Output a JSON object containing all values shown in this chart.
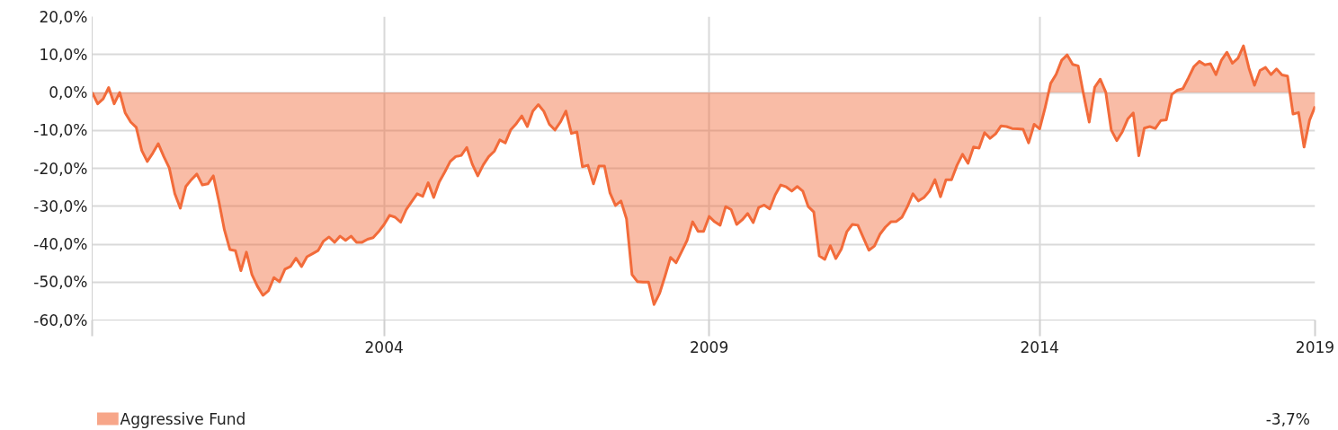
{
  "chart_data": {
    "type": "area",
    "categories": [
      null,
      null,
      null,
      null,
      null,
      null,
      null,
      null,
      null,
      null,
      null,
      null,
      null,
      null,
      null,
      null,
      null,
      null,
      null,
      null,
      null,
      null,
      null,
      null,
      null,
      null,
      null,
      null,
      null,
      null,
      null,
      null,
      null,
      null,
      null,
      null,
      null,
      null,
      null,
      null,
      null,
      null,
      null,
      null,
      null,
      null,
      null,
      null,
      null,
      null,
      null,
      null,
      null,
      "2004",
      null,
      null,
      null,
      null,
      null,
      null,
      null,
      null,
      null,
      null,
      null,
      null,
      null,
      null,
      null,
      null,
      null,
      null,
      null,
      null,
      null,
      null,
      null,
      null,
      null,
      null,
      null,
      null,
      null,
      null,
      null,
      null,
      null,
      null,
      null,
      null,
      null,
      null,
      null,
      null,
      null,
      null,
      null,
      null,
      null,
      null,
      null,
      null,
      null,
      null,
      null,
      null,
      null,
      null,
      null,
      null,
      null,
      null,
      "2009",
      null,
      null,
      null,
      null,
      null,
      null,
      null,
      null,
      null,
      null,
      null,
      null,
      null,
      null,
      null,
      null,
      null,
      null,
      null,
      null,
      null,
      null,
      null,
      null,
      null,
      null,
      null,
      null,
      null,
      null,
      null,
      null,
      null,
      null,
      null,
      null,
      null,
      null,
      null,
      null,
      null,
      null,
      null,
      null,
      null,
      null,
      null,
      null,
      null,
      null,
      null,
      null,
      null,
      null,
      null,
      null,
      null,
      null,
      null,
      "2014",
      null,
      null,
      null,
      null,
      null,
      null,
      null,
      null,
      null,
      null,
      null,
      null,
      null,
      null,
      null,
      null,
      null,
      null,
      null,
      null,
      null,
      null,
      null,
      null,
      null,
      null,
      null,
      null,
      null,
      null,
      null,
      null,
      null,
      null,
      null,
      null,
      null,
      null,
      null,
      null,
      null,
      null,
      null,
      null,
      null,
      null,
      null,
      null,
      null,
      "2019"
    ],
    "series": [
      {
        "name": "Aggressive Fund",
        "color": "#f26b3a",
        "values": [
          0,
          -3,
          -1.7,
          1.3,
          -3,
          0,
          -5.4,
          -7.8,
          -9.2,
          -15.3,
          -18.2,
          -16,
          -13.5,
          -16.9,
          -19.9,
          -26.7,
          -30.5,
          -24.8,
          -23,
          -21.5,
          -24.4,
          -24.1,
          -22,
          -28.7,
          -36.2,
          -41.4,
          -41.7,
          -47,
          -42.1,
          -48,
          -51.1,
          -53.5,
          -52.3,
          -48.8,
          -49.9,
          -46.6,
          -45.9,
          -43.7,
          -45.9,
          -43.3,
          -42.5,
          -41.7,
          -39.2,
          -38.1,
          -39.5,
          -37.9,
          -39,
          -37.9,
          -39.5,
          -39.5,
          -38.7,
          -38.3,
          -36.7,
          -34.8,
          -32.4,
          -32.9,
          -34.2,
          -30.9,
          -28.8,
          -26.7,
          -27.4,
          -23.8,
          -27.7,
          -23.6,
          -21,
          -18.2,
          -16.9,
          -16.6,
          -14.5,
          -18.9,
          -22,
          -19.1,
          -16.9,
          -15.5,
          -12.5,
          -13.3,
          -9.8,
          -8.2,
          -6.2,
          -9,
          -4.9,
          -3.2,
          -5,
          -8.4,
          -9.9,
          -7.8,
          -4.9,
          -10.8,
          -10.4,
          -19.6,
          -19.2,
          -24.1,
          -19.4,
          -19.4,
          -26.5,
          -29.8,
          -28.6,
          -33.3,
          -48,
          -49.9,
          -50,
          -50,
          -55.9,
          -53,
          -48.4,
          -43.5,
          -44.9,
          -42,
          -39,
          -34.1,
          -36.6,
          -36.6,
          -32.7,
          -34.1,
          -35,
          -30.1,
          -30.9,
          -34.8,
          -33.6,
          -31.9,
          -34.3,
          -30.3,
          -29.7,
          -30.7,
          -27,
          -24.4,
          -24.9,
          -26,
          -24.8,
          -26,
          -30.1,
          -31.5,
          -43.1,
          -44,
          -40.4,
          -43.8,
          -41.3,
          -36.7,
          -34.8,
          -35,
          -38.3,
          -41.6,
          -40.5,
          -37.4,
          -35.5,
          -34.1,
          -34,
          -32.9,
          -30.1,
          -26.7,
          -28.6,
          -27.7,
          -26,
          -23,
          -27.5,
          -23,
          -23,
          -19.2,
          -16.3,
          -18.7,
          -14.4,
          -14.7,
          -10.6,
          -12.1,
          -10.9,
          -8.8,
          -9,
          -9.5,
          -9.6,
          -9.7,
          -13.3,
          -8.4,
          -9.6,
          -4,
          2.4,
          4.8,
          8.5,
          9.9,
          7.4,
          7.0,
          -0.7,
          -7.8,
          1.4,
          3.5,
          0.1,
          -9.9,
          -12.7,
          -10.4,
          -7,
          -5.4,
          -16.7,
          -9.4,
          -9,
          -9.5,
          -7.4,
          -7.2,
          -0.5,
          0.6,
          1.0,
          3.8,
          6.8,
          8.2,
          7.3,
          7.6,
          4.7,
          8.5,
          10.6,
          7.7,
          9.0,
          12.3,
          6.4,
          1.9,
          5.8,
          6.6,
          4.7,
          6.2,
          4.6,
          4.3,
          -5.7,
          -5.3,
          -14.4,
          -7.3,
          -3.7
        ]
      }
    ],
    "ylim": [
      -60,
      20
    ],
    "yticks": [
      {
        "value": -60,
        "label": "-60,0%"
      },
      {
        "value": -50,
        "label": "-50,0%"
      },
      {
        "value": -40,
        "label": "-40,0%"
      },
      {
        "value": -30,
        "label": "-30,0%"
      },
      {
        "value": -20,
        "label": "-20,0%"
      },
      {
        "value": -10,
        "label": "-10,0%"
      },
      {
        "value": 0,
        "label": "0,0%"
      },
      {
        "value": 10,
        "label": "10,0%"
      },
      {
        "value": 20,
        "label": "20,0%"
      }
    ],
    "grid": true,
    "legend": "bottom left",
    "annotations": [
      "-3,7%"
    ]
  }
}
